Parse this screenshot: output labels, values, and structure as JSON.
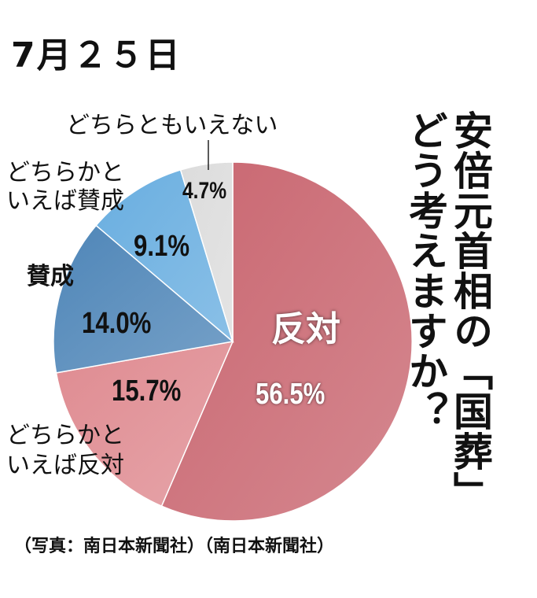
{
  "date": "7月２５日",
  "title_line1": "安倍元首相の「国葬」",
  "title_line2": "どう考えますか？",
  "credit": "（写真：南日本新聞社）（南日本新聞社）",
  "chart_data": {
    "type": "pie",
    "slices": [
      {
        "label": "反対",
        "value": 56.5,
        "value_label": "56.5%",
        "color": "#c96670"
      },
      {
        "label": "どちらかといえば反対",
        "value": 15.7,
        "value_label": "15.7%",
        "color": "#df8b91"
      },
      {
        "label": "賛成",
        "value": 14.0,
        "value_label": "14.0%",
        "color": "#4f86b8"
      },
      {
        "label": "どちらかといえば賛成",
        "value": 9.1,
        "value_label": "9.1%",
        "color": "#69aee0"
      },
      {
        "label": "どちらともいえない",
        "value": 4.7,
        "value_label": "4.7%",
        "color": "#dcdcdc"
      }
    ],
    "label_lines": {
      "oppose_somewhat": [
        "どちらかと",
        "いえば反対"
      ],
      "support_somewhat": [
        "どちらかと",
        "いえば賛成"
      ]
    }
  }
}
